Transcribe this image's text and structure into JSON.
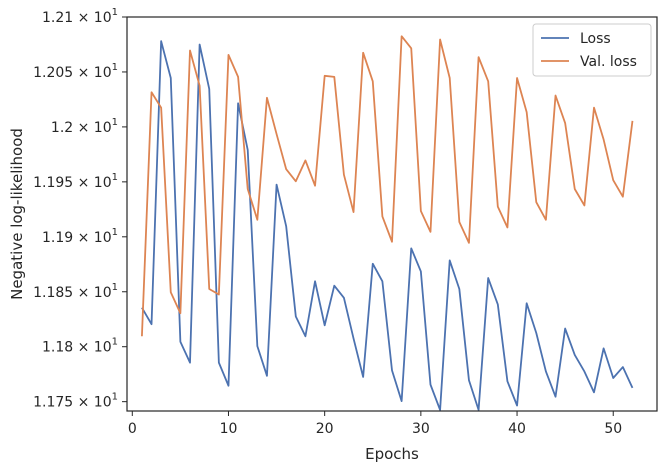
{
  "chart_data": {
    "type": "line",
    "title": "",
    "xlabel": "Epochs",
    "ylabel": "Negative log-likelihood",
    "xlim": [
      -0.55,
      54.55
    ],
    "ylim": [
      11.7415,
      12.1
    ],
    "x_ticks": [
      0,
      10,
      20,
      30,
      40,
      50
    ],
    "y_ticks": [
      {
        "value": 11.75,
        "mantissa": "1.175"
      },
      {
        "value": 11.8,
        "mantissa": "1.18"
      },
      {
        "value": 11.85,
        "mantissa": "1.185"
      },
      {
        "value": 11.9,
        "mantissa": "1.19"
      },
      {
        "value": 11.95,
        "mantissa": "1.195"
      },
      {
        "value": 12.0,
        "mantissa": "1.2"
      },
      {
        "value": 12.05,
        "mantissa": "1.205"
      },
      {
        "value": 12.1,
        "mantissa": "1.21"
      }
    ],
    "y_tick_suffix": "× 10",
    "y_tick_exponent": "1",
    "grid": false,
    "legend_position": "top-right",
    "x": [
      1,
      2,
      3,
      4,
      5,
      6,
      7,
      8,
      9,
      10,
      11,
      12,
      13,
      14,
      15,
      16,
      17,
      18,
      19,
      20,
      21,
      22,
      23,
      24,
      25,
      26,
      27,
      28,
      29,
      30,
      31,
      32,
      33,
      34,
      35,
      36,
      37,
      38,
      39,
      40,
      41,
      42,
      43,
      44,
      45,
      46,
      47,
      48,
      49,
      50,
      51,
      52
    ],
    "series": [
      {
        "name": "Loss",
        "color": "#4c72b0",
        "values": [
          11.8355,
          11.8205,
          12.078,
          12.0445,
          11.8045,
          11.7855,
          12.075,
          12.0345,
          11.7855,
          11.7645,
          12.0215,
          11.979,
          11.8005,
          11.7735,
          11.9475,
          11.9095,
          11.8275,
          11.8095,
          11.8595,
          11.8195,
          11.8555,
          11.8445,
          11.8075,
          11.7725,
          11.8755,
          11.8595,
          11.7785,
          11.7505,
          11.8895,
          11.8685,
          11.7655,
          11.7425,
          11.8785,
          11.8525,
          11.7695,
          11.7425,
          11.8625,
          11.8385,
          11.7685,
          11.7465,
          11.8395,
          11.8125,
          11.7775,
          11.7545,
          11.8165,
          11.7925,
          11.7775,
          11.7585,
          11.7985,
          11.7715,
          11.7815,
          11.7625
        ]
      },
      {
        "name": "Val. loss",
        "color": "#dd8452",
        "values": [
          11.8095,
          12.0315,
          12.0175,
          11.8495,
          11.8305,
          12.0695,
          12.0375,
          11.8525,
          11.8475,
          12.0655,
          12.0455,
          11.9435,
          11.9155,
          12.0265,
          11.9935,
          11.9615,
          11.9505,
          11.9695,
          11.9465,
          12.0465,
          12.0455,
          11.9565,
          11.9225,
          12.0675,
          12.0415,
          11.9185,
          11.8955,
          12.0825,
          12.0715,
          11.9235,
          11.9045,
          12.0795,
          12.0445,
          11.9135,
          11.8945,
          12.0635,
          12.0415,
          11.9275,
          11.9085,
          12.0445,
          12.0135,
          11.9315,
          11.9155,
          12.0285,
          12.0035,
          11.9435,
          11.9285,
          12.0175,
          11.9885,
          11.9515,
          11.9365,
          12.0055
        ]
      }
    ]
  }
}
